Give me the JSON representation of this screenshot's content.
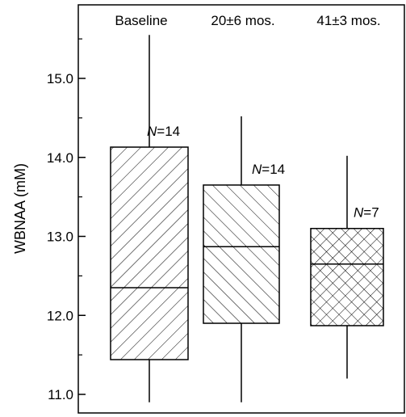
{
  "chart_data": {
    "type": "boxplot",
    "title": "",
    "xlabel": "",
    "ylabel": "WBNAA (mM)",
    "ylim": [
      10.8,
      15.9
    ],
    "yticks": [
      11.0,
      12.0,
      13.0,
      14.0,
      15.0
    ],
    "ytick_labels": [
      "11.0",
      "12.0",
      "13.0",
      "14.0",
      "15.0"
    ],
    "grid": false,
    "categories": [
      "Baseline",
      "20±6 mos.",
      "41±3 mos."
    ],
    "series": [
      {
        "category": "Baseline",
        "whisker_low": 10.9,
        "q1": 11.44,
        "median": 12.35,
        "q3": 14.13,
        "whisker_high": 15.55,
        "n_label": "=14",
        "pattern": "diagonal-forward"
      },
      {
        "category": "20±6 mos.",
        "whisker_low": 10.9,
        "q1": 11.9,
        "median": 12.87,
        "q3": 13.65,
        "whisker_high": 14.52,
        "n_label": "=14",
        "pattern": "diagonal-backward"
      },
      {
        "category": "41±3 mos.",
        "whisker_low": 11.2,
        "q1": 11.87,
        "median": 12.65,
        "q3": 13.1,
        "whisker_high": 14.02,
        "n_label": "=7",
        "pattern": "crosshatch"
      }
    ],
    "n_prefix": "N"
  }
}
